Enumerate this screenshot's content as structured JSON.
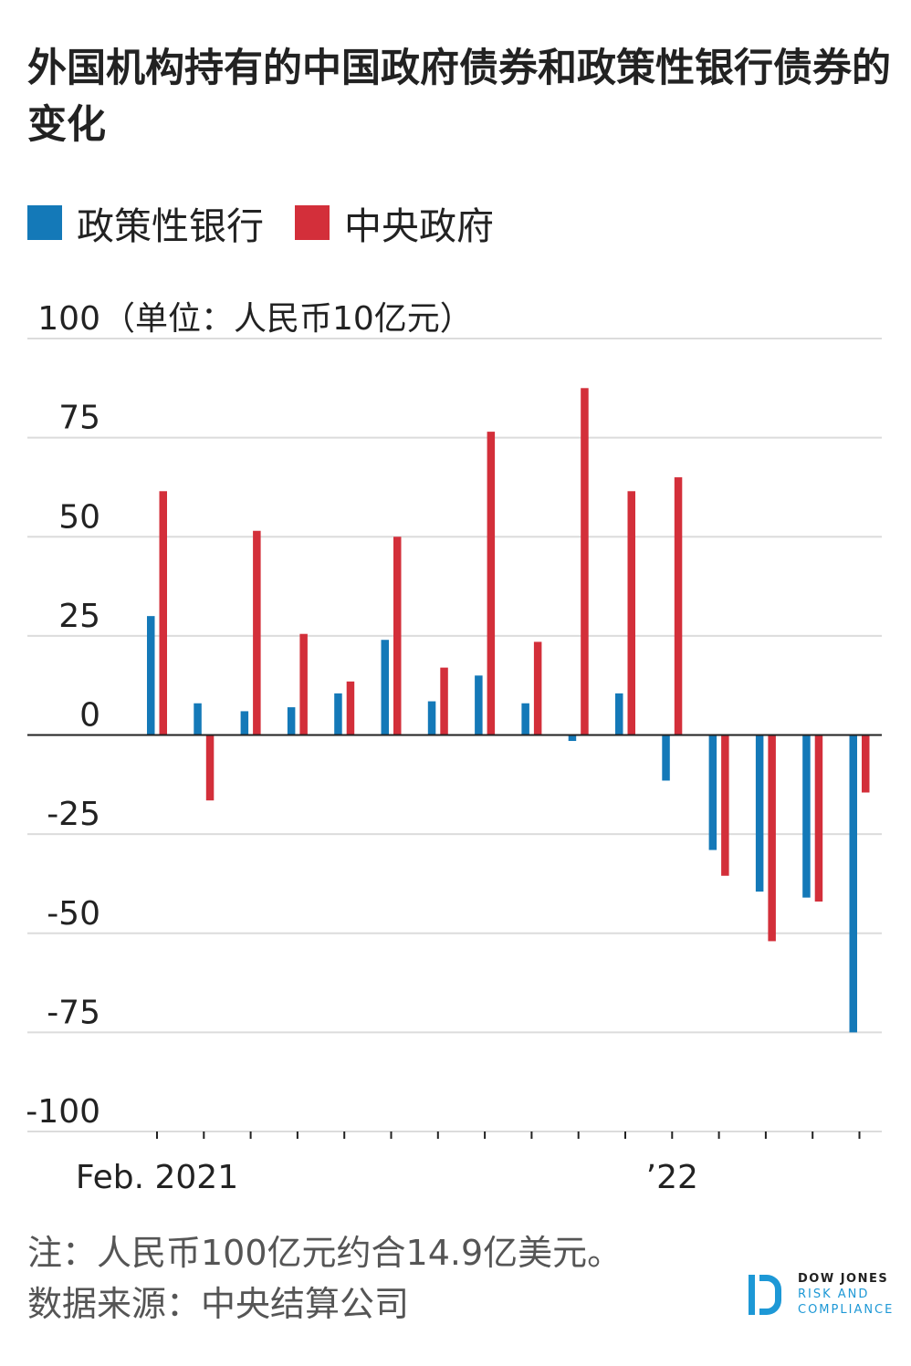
{
  "title": "外国机构持有的中国政府债券和政策性银行债券的变化",
  "legend": [
    {
      "label": "政策性银行",
      "color": "#1479b8"
    },
    {
      "label": "中央政府",
      "color": "#d32f3a"
    }
  ],
  "chart_data": {
    "type": "bar",
    "ylabel": "（单位：人民币10亿元）",
    "ylim": [
      -100,
      100
    ],
    "yticks": [
      100,
      75,
      50,
      25,
      0,
      -25,
      -50,
      -75,
      -100
    ],
    "x_tick_labels": [
      {
        "label": "Feb. 2021",
        "index": 0
      },
      {
        "label": "’22",
        "index": 11
      }
    ],
    "categories": [
      "2021-02",
      "2021-03",
      "2021-04",
      "2021-05",
      "2021-06",
      "2021-07",
      "2021-08",
      "2021-09",
      "2021-10",
      "2021-11",
      "2021-12",
      "2022-01",
      "2022-02",
      "2022-03",
      "2022-04",
      "2022-05"
    ],
    "series": [
      {
        "name": "政策性银行",
        "color": "#1479b8",
        "values": [
          30,
          8,
          6,
          7,
          10.5,
          24,
          8.5,
          15,
          8,
          -1.5,
          10.5,
          -11.5,
          -29,
          -39.5,
          -41,
          -75
        ]
      },
      {
        "name": "中央政府",
        "color": "#d32f3a",
        "values": [
          61.5,
          -16.5,
          51.5,
          25.5,
          13.5,
          50,
          17,
          76.5,
          23.5,
          87.5,
          61.5,
          65,
          -35.5,
          -52,
          -42,
          -14.5
        ]
      }
    ]
  },
  "footnote": {
    "note": "注：人民币100亿元约合14.9亿美元。",
    "source": "数据来源：中央结算公司"
  },
  "logo": {
    "line1": "DOW JONES",
    "line2": "RISK AND",
    "line3": "COMPLIANCE",
    "color": "#1d98d6"
  }
}
